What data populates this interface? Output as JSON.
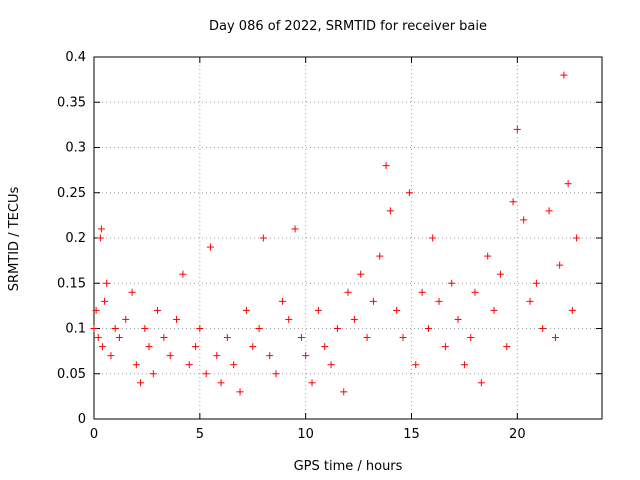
{
  "chart_data": {
    "type": "scatter",
    "title": "Day 086 of 2022, SRMTID for receiver baie",
    "xlabel": "GPS time / hours",
    "ylabel": "SRMTID / TECUs",
    "xlim": [
      0,
      24
    ],
    "ylim": [
      0,
      0.4
    ],
    "x_ticks": [
      0,
      5,
      10,
      15,
      20
    ],
    "x_tick_labels": [
      "0",
      "5",
      "10",
      "15",
      "20"
    ],
    "y_ticks": [
      0,
      0.05,
      0.1,
      0.15,
      0.2,
      0.25,
      0.3,
      0.35,
      0.4
    ],
    "y_tick_labels": [
      "0",
      "0.05",
      "0.1",
      "0.15",
      "0.2",
      "0.25",
      "0.3",
      "0.35",
      "0.4"
    ],
    "grid": true,
    "marker": "+",
    "color": "#ff0000",
    "series": [
      {
        "name": "SRMTID",
        "x": [
          0.0,
          0.1,
          0.2,
          0.3,
          0.35,
          0.4,
          0.5,
          0.6,
          0.8,
          1.0,
          1.2,
          1.5,
          1.8,
          2.0,
          2.2,
          2.4,
          2.6,
          2.8,
          3.0,
          3.3,
          3.6,
          3.9,
          4.2,
          4.5,
          4.8,
          5.0,
          5.3,
          5.5,
          5.8,
          6.0,
          6.3,
          6.6,
          6.9,
          7.2,
          7.5,
          7.8,
          8.0,
          8.3,
          8.6,
          8.9,
          9.2,
          9.5,
          9.8,
          10.0,
          10.3,
          10.6,
          10.9,
          11.2,
          11.5,
          11.8,
          12.0,
          12.3,
          12.6,
          12.9,
          13.2,
          13.5,
          13.8,
          14.0,
          14.3,
          14.6,
          14.9,
          15.2,
          15.5,
          15.8,
          16.0,
          16.3,
          16.6,
          16.9,
          17.2,
          17.5,
          17.8,
          18.0,
          18.3,
          18.6,
          18.9,
          19.2,
          19.5,
          19.8,
          20.0,
          20.3,
          20.6,
          20.9,
          21.2,
          21.5,
          21.8,
          22.0,
          22.2,
          22.4,
          22.6,
          22.8
        ],
        "y": [
          0.1,
          0.12,
          0.09,
          0.2,
          0.21,
          0.08,
          0.13,
          0.15,
          0.07,
          0.1,
          0.09,
          0.11,
          0.14,
          0.06,
          0.04,
          0.1,
          0.08,
          0.05,
          0.12,
          0.09,
          0.07,
          0.11,
          0.16,
          0.06,
          0.08,
          0.1,
          0.05,
          0.19,
          0.07,
          0.04,
          0.09,
          0.06,
          0.03,
          0.12,
          0.08,
          0.1,
          0.2,
          0.07,
          0.05,
          0.13,
          0.11,
          0.21,
          0.09,
          0.07,
          0.04,
          0.12,
          0.08,
          0.06,
          0.1,
          0.03,
          0.14,
          0.11,
          0.16,
          0.09,
          0.13,
          0.18,
          0.28,
          0.23,
          0.12,
          0.09,
          0.25,
          0.06,
          0.14,
          0.1,
          0.2,
          0.13,
          0.08,
          0.15,
          0.11,
          0.06,
          0.09,
          0.14,
          0.04,
          0.18,
          0.12,
          0.16,
          0.08,
          0.24,
          0.32,
          0.22,
          0.13,
          0.15,
          0.1,
          0.23,
          0.09,
          0.17,
          0.38,
          0.26,
          0.12,
          0.2
        ]
      }
    ]
  }
}
